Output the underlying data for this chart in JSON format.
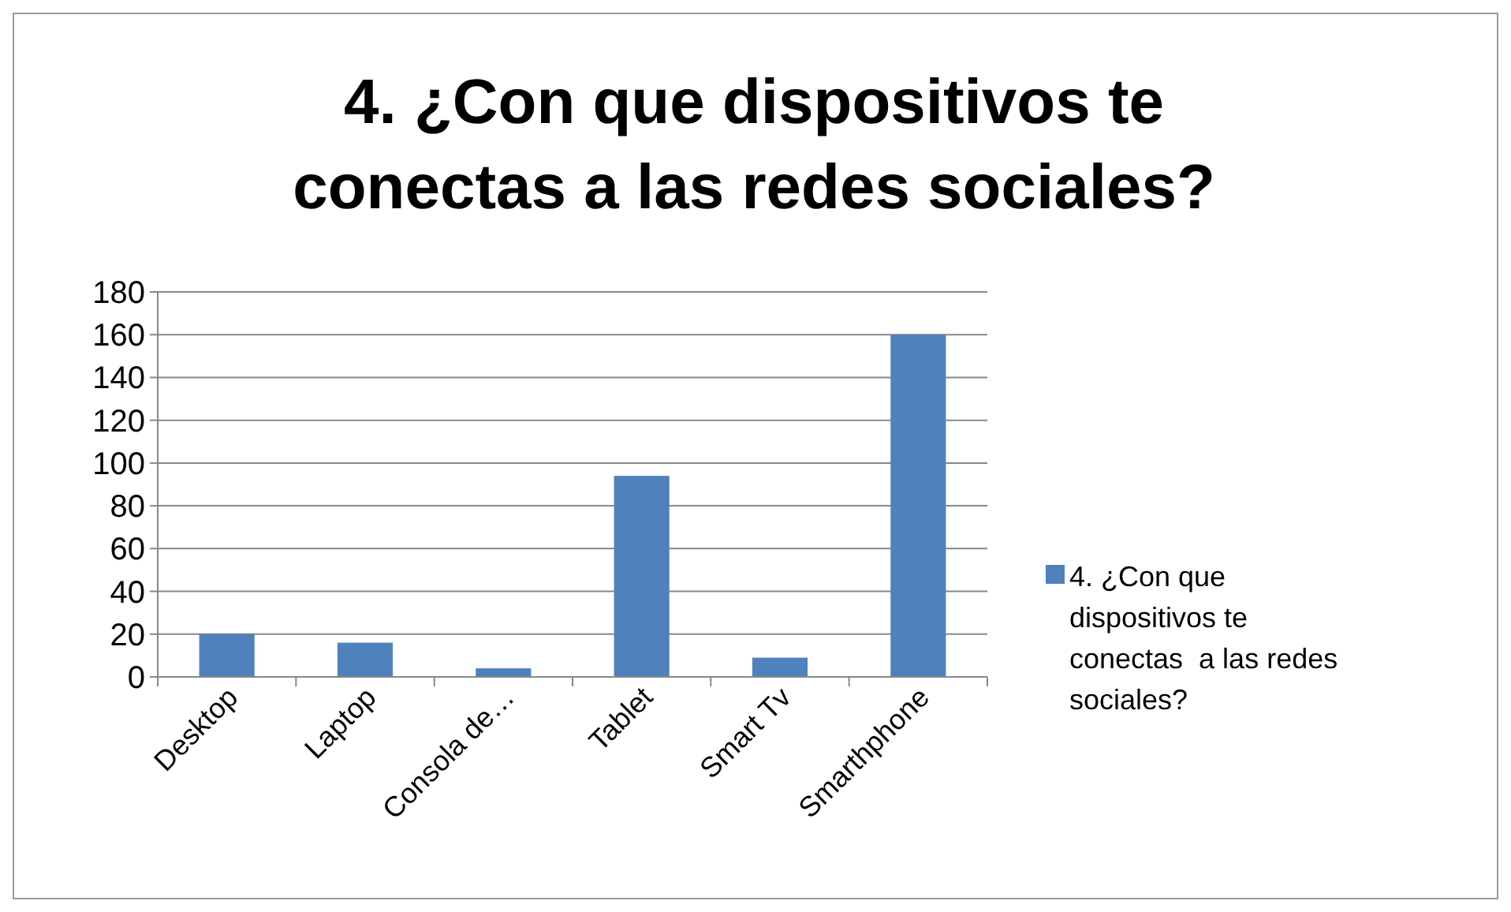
{
  "chart_data": {
    "type": "bar",
    "title": "4. ¿Con que dispositivos te conectas a las redes sociales?",
    "categories": [
      "Desktop",
      "Laptop",
      "Consola de…",
      "Tablet",
      "Smart Tv",
      "Smarthphone"
    ],
    "series": [
      {
        "name": "4. ¿Con que dispositivos te conectas  a las redes sociales?",
        "color": "#4f81bd",
        "values": [
          20,
          16,
          4,
          94,
          9,
          160
        ]
      }
    ],
    "ylim": [
      0,
      180
    ],
    "yticks": [
      0,
      20,
      40,
      60,
      80,
      100,
      120,
      140,
      160,
      180
    ],
    "grid": "y",
    "legend": "right"
  }
}
